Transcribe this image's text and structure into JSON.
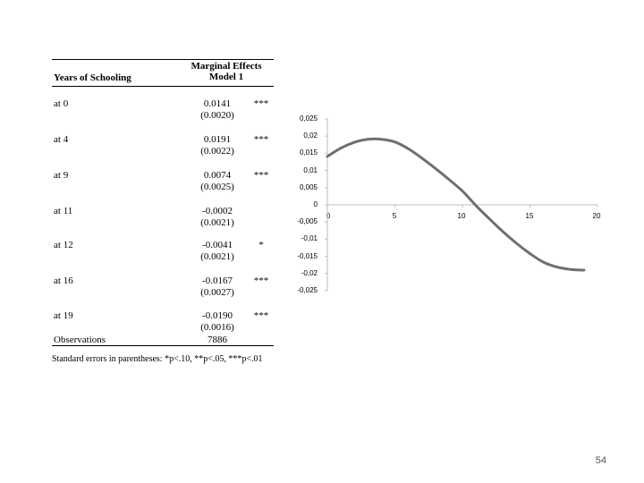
{
  "table": {
    "row_header": "Years of Schooling",
    "col_header_line1": "Marginal Effects",
    "col_header_line2": "Model 1",
    "rows": [
      {
        "label": "at 0",
        "estimate": "0.0141",
        "se": "(0.0020)",
        "stars": "***"
      },
      {
        "label": "at 4",
        "estimate": "0.0191",
        "se": "(0.0022)",
        "stars": "***"
      },
      {
        "label": "at 9",
        "estimate": "0.0074",
        "se": "(0.0025)",
        "stars": "***"
      },
      {
        "label": "at 11",
        "estimate": "-0.0002",
        "se": "(0.0021)",
        "stars": ""
      },
      {
        "label": "at 12",
        "estimate": "-0.0041",
        "se": "(0.0021)",
        "stars": "*"
      },
      {
        "label": "at 16",
        "estimate": "-0.0167",
        "se": "(0.0027)",
        "stars": "***"
      },
      {
        "label": "at 19",
        "estimate": "-0.0190",
        "se": "(0.0016)",
        "stars": "***"
      }
    ],
    "obs_label": "Observations",
    "obs_value": "7886",
    "footnote": "Standard errors in parentheses: *p<.10, **p<.05, ***p<.01"
  },
  "chart_data": {
    "type": "line",
    "title": "",
    "xlabel": "",
    "ylabel": "",
    "xlim": [
      0,
      20
    ],
    "ylim": [
      -0.025,
      0.025
    ],
    "x_ticks": [
      "0",
      "5",
      "10",
      "15",
      "20"
    ],
    "y_ticks": [
      "0,025",
      "0,02",
      "0,015",
      "0,01",
      "0,005",
      "0",
      "-0,005",
      "-0,01",
      "-0,015",
      "-0,02",
      "-0,025"
    ],
    "grid": false,
    "line_color": "#6f6f6f",
    "series": [
      {
        "x": [
          0,
          1,
          2,
          3,
          4,
          5,
          6,
          7,
          8,
          9,
          10,
          11,
          12,
          13,
          14,
          15,
          16,
          17,
          18,
          19
        ],
        "y": [
          0.0141,
          0.0165,
          0.0182,
          0.0191,
          0.0191,
          0.0183,
          0.0163,
          0.0136,
          0.0106,
          0.0074,
          0.004,
          -0.0002,
          -0.0041,
          -0.0078,
          -0.0112,
          -0.0142,
          -0.0167,
          -0.0181,
          -0.0188,
          -0.019
        ]
      }
    ]
  },
  "page_number": "54"
}
